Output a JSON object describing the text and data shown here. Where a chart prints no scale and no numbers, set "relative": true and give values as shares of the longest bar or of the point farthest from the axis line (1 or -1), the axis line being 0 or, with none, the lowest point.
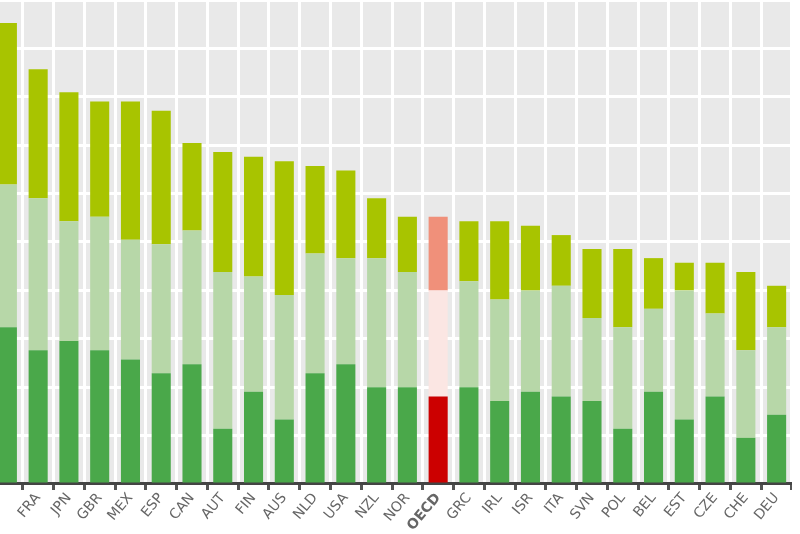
{
  "chart_data": {
    "type": "bar",
    "stacked": true,
    "relative": true,
    "grid": true,
    "legend": false,
    "categories": [
      null,
      "FRA",
      "JPN",
      "GBR",
      "MEX",
      "ESP",
      "CAN",
      "AUT",
      "FIN",
      "AUS",
      "NLD",
      "USA",
      "NZL",
      "NOR",
      "OECD",
      "GRC",
      "IRL",
      "ISR",
      "ITA",
      "SVN",
      "POL",
      "BEL",
      "EST",
      "CZE",
      "CHE",
      "DEU"
    ],
    "series": [
      {
        "color": "#4aa84a",
        "colors": [
          "#4aa84a",
          "#4aa84a",
          "#4aa84a",
          "#4aa84a",
          "#4aa84a",
          "#4aa84a",
          "#4aa84a",
          "#4aa84a",
          "#4aa84a",
          "#4aa84a",
          "#4aa84a",
          "#4aa84a",
          "#4aa84a",
          "#4aa84a",
          "#cc0000",
          "#4aa84a",
          "#4aa84a",
          "#4aa84a",
          "#4aa84a",
          "#4aa84a",
          "#4aa84a",
          "#4aa84a",
          "#4aa84a",
          "#4aa84a",
          "#4aa84a",
          "#4aa84a"
        ],
        "values": [
          0.34,
          0.29,
          0.31,
          0.29,
          0.27,
          0.24,
          0.26,
          0.12,
          0.2,
          0.14,
          0.24,
          0.26,
          0.21,
          0.21,
          0.19,
          0.21,
          0.18,
          0.2,
          0.19,
          0.18,
          0.12,
          0.2,
          0.14,
          0.19,
          0.1,
          0.15
        ]
      },
      {
        "color": "#b7d7a8",
        "colors": [
          "#b7d7a8",
          "#b7d7a8",
          "#b7d7a8",
          "#b7d7a8",
          "#b7d7a8",
          "#b7d7a8",
          "#b7d7a8",
          "#b7d7a8",
          "#b7d7a8",
          "#b7d7a8",
          "#b7d7a8",
          "#b7d7a8",
          "#b7d7a8",
          "#b7d7a8",
          "#fbe6e3",
          "#b7d7a8",
          "#b7d7a8",
          "#b7d7a8",
          "#b7d7a8",
          "#b7d7a8",
          "#b7d7a8",
          "#b7d7a8",
          "#b7d7a8",
          "#b7d7a8",
          "#b7d7a8",
          "#b7d7a8"
        ],
        "values": [
          0.31,
          0.33,
          0.26,
          0.29,
          0.26,
          0.28,
          0.29,
          0.34,
          0.25,
          0.27,
          0.26,
          0.23,
          0.28,
          0.25,
          0.23,
          0.23,
          0.22,
          0.22,
          0.24,
          0.18,
          0.22,
          0.18,
          0.28,
          0.18,
          0.19,
          0.19
        ]
      },
      {
        "color": "#a8c400",
        "colors": [
          "#a8c400",
          "#a8c400",
          "#a8c400",
          "#a8c400",
          "#a8c400",
          "#a8c400",
          "#a8c400",
          "#a8c400",
          "#a8c400",
          "#a8c400",
          "#a8c400",
          "#a8c400",
          "#a8c400",
          "#a8c400",
          "#f0907a",
          "#a8c400",
          "#a8c400",
          "#a8c400",
          "#a8c400",
          "#a8c400",
          "#a8c400",
          "#a8c400",
          "#a8c400",
          "#a8c400",
          "#a8c400",
          "#a8c400"
        ],
        "values": [
          0.35,
          0.28,
          0.28,
          0.25,
          0.3,
          0.29,
          0.19,
          0.26,
          0.26,
          0.29,
          0.19,
          0.19,
          0.13,
          0.12,
          0.16,
          0.13,
          0.17,
          0.14,
          0.11,
          0.15,
          0.17,
          0.11,
          0.06,
          0.11,
          0.17,
          0.09
        ]
      }
    ]
  }
}
